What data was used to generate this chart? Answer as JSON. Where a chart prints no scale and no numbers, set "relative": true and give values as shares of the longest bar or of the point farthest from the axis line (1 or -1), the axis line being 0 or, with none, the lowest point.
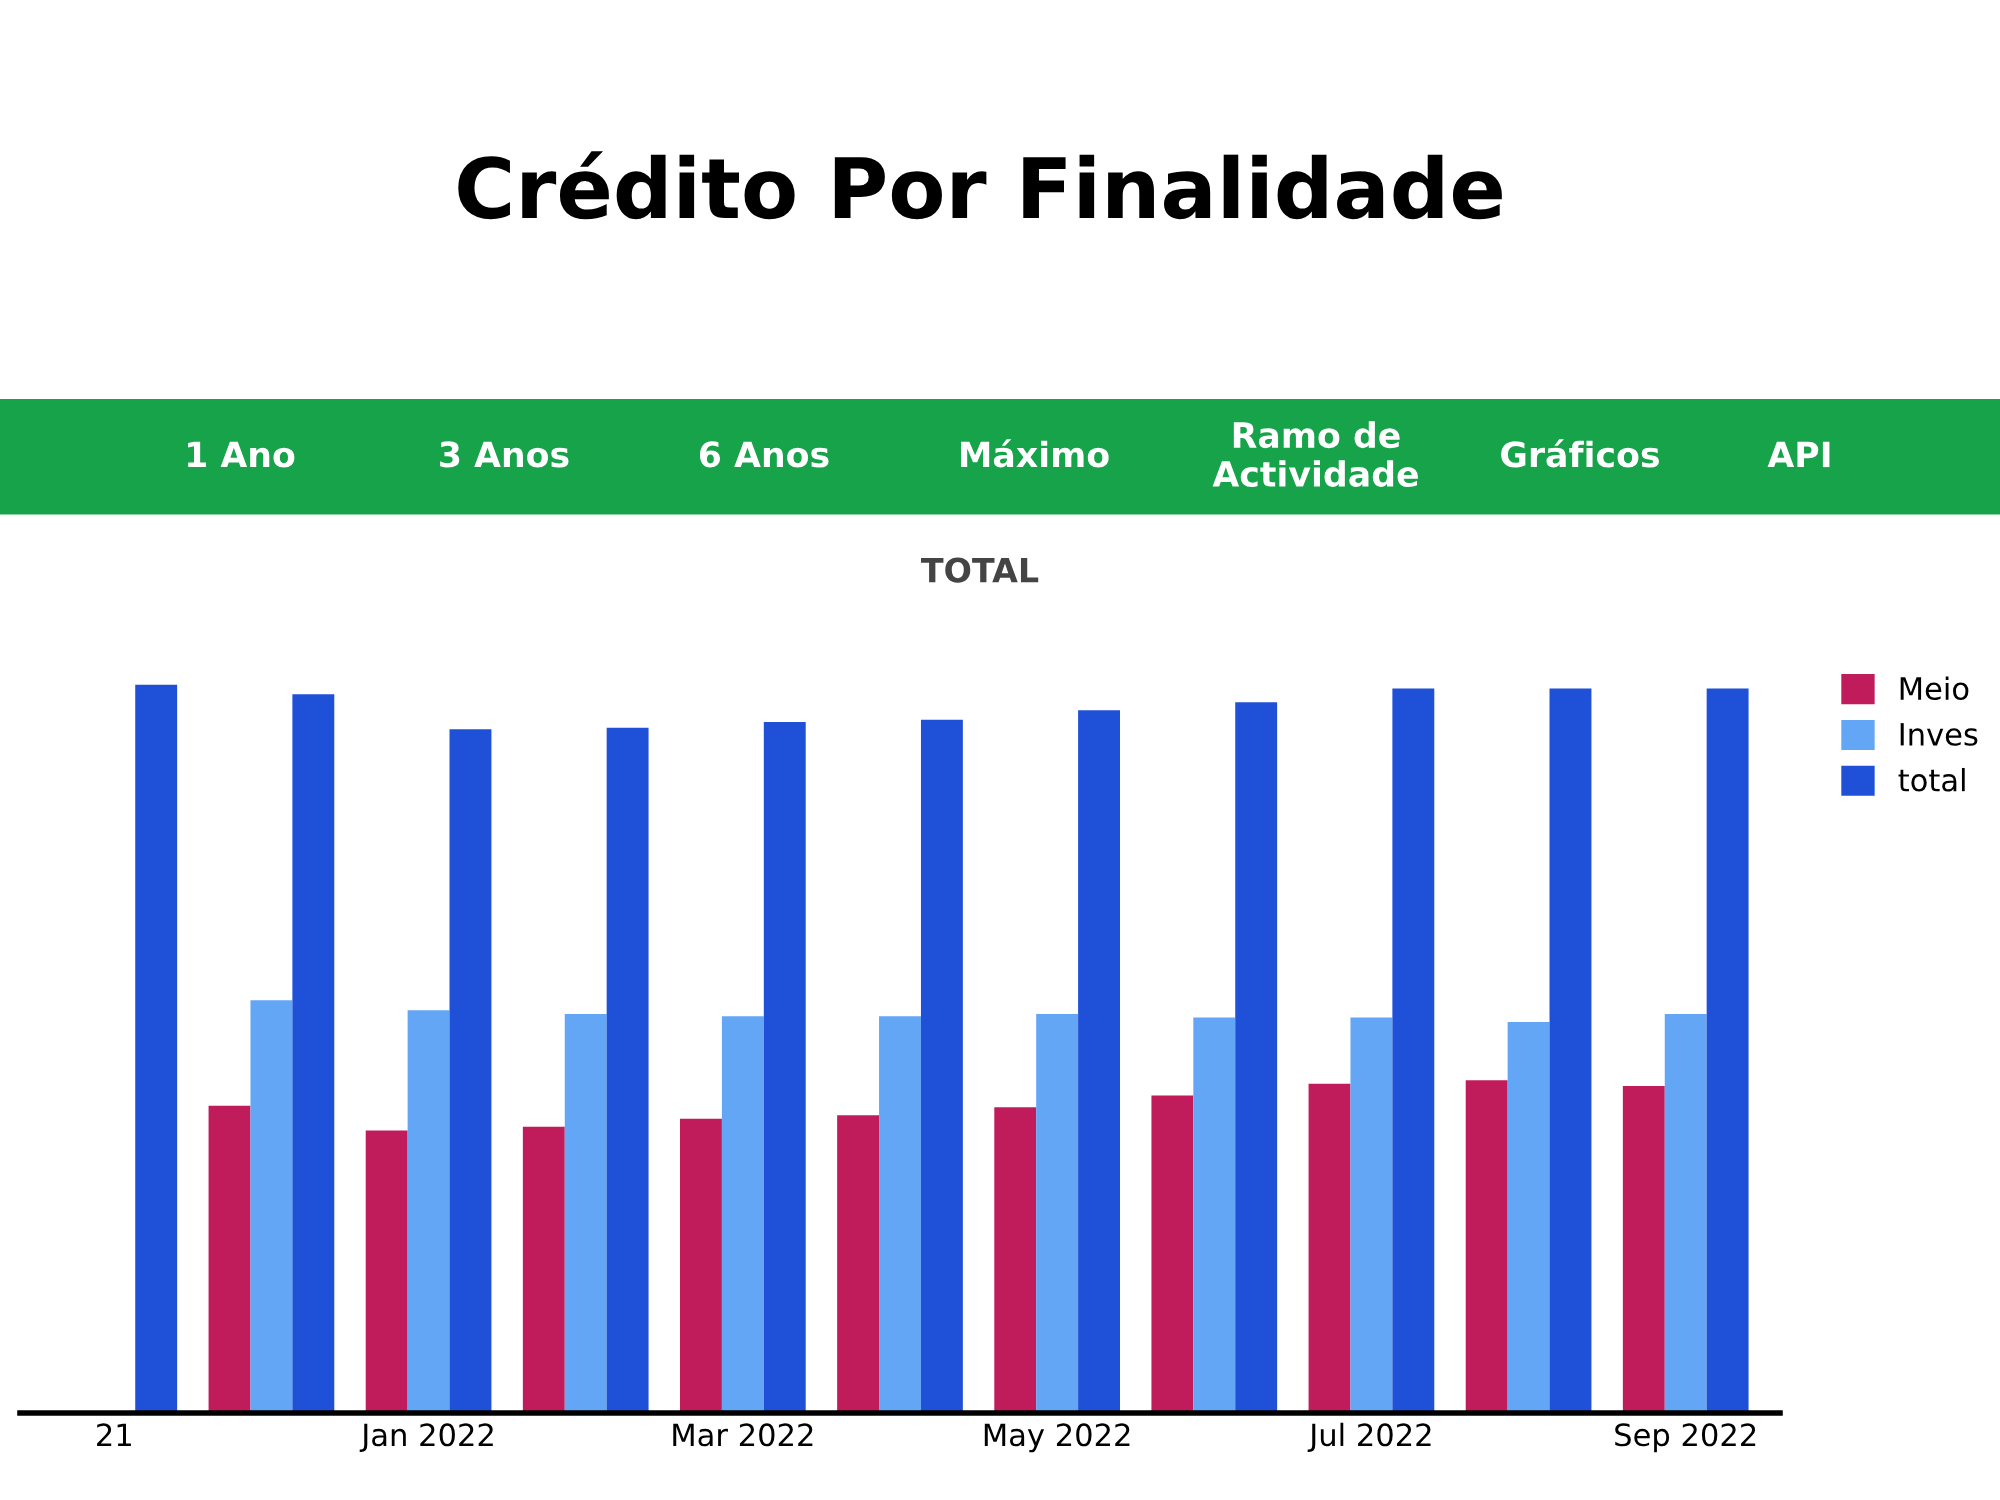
{
  "chart_data": {
    "type": "bar",
    "title": "Crédito Por Finalidade",
    "subtitle": "TOTAL",
    "annotations": [
      "1 Ano",
      "3 Anos",
      "6 Anos",
      "Máximo",
      "Ramo de\nActividade",
      "Gráficos",
      "API"
    ],
    "categories": [
      "21",
      null,
      "Jan 2022",
      null,
      "Mar 2022",
      null,
      "May 2022",
      null,
      "Jul 2022",
      null,
      "Sep 2022"
    ],
    "relative": true,
    "legend": "top right",
    "series": [
      {
        "name": "Meio",
        "color": "#c01b5b",
        "values": [
          null,
          0.422,
          0.388,
          0.393,
          0.404,
          0.409,
          0.42,
          0.436,
          0.452,
          0.457,
          0.449
        ]
      },
      {
        "name": "Inves",
        "color": "#63a6f6",
        "values": [
          null,
          0.567,
          0.553,
          0.548,
          0.545,
          0.545,
          0.548,
          0.543,
          0.543,
          0.537,
          0.548
        ]
      },
      {
        "name": "total",
        "color": "#1f50d8",
        "values": [
          1,
          0.987,
          0.939,
          0.941,
          0.949,
          0.952,
          0.965,
          0.976,
          0.995,
          0.995,
          0.995
        ]
      }
    ]
  }
}
